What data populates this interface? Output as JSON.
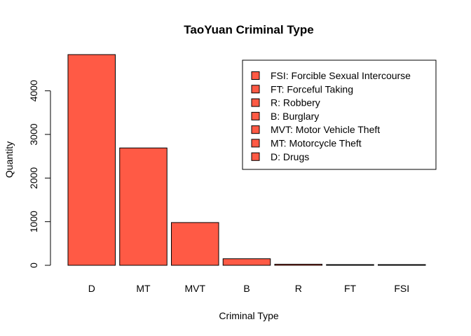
{
  "chart_data": {
    "type": "bar",
    "title": "TaoYuan Criminal Type",
    "xlabel": "Criminal Type",
    "ylabel": "Quantity",
    "categories": [
      "D",
      "MT",
      "MVT",
      "B",
      "R",
      "FT",
      "FSI"
    ],
    "values": [
      4830,
      2690,
      980,
      150,
      25,
      15,
      10
    ],
    "ylim": [
      0,
      4830
    ],
    "yticks": [
      0,
      1000,
      2000,
      3000,
      4000
    ],
    "grid": false,
    "bar_color": "#FF5A45",
    "bar_border_color": "#000000",
    "legend": {
      "placement": "top-right",
      "entries": [
        "FSI: Forcible Sexual Intercourse",
        "FT: Forceful Taking",
        "R: Robbery",
        "B: Burglary",
        "MVT: Motor Vehicle Theft",
        "MT: Motorcycle Theft",
        "D: Drugs"
      ]
    }
  }
}
